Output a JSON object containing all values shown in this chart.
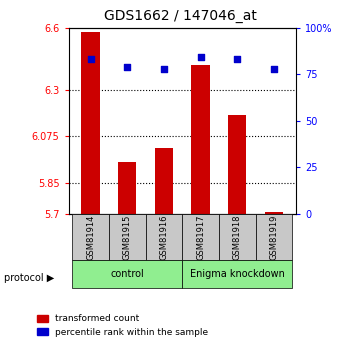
{
  "title": "GDS1662 / 147046_at",
  "samples": [
    "GSM81914",
    "GSM81915",
    "GSM81916",
    "GSM81917",
    "GSM81918",
    "GSM81919"
  ],
  "red_values": [
    6.58,
    5.95,
    6.02,
    6.42,
    6.18,
    5.71
  ],
  "blue_values": [
    83,
    79,
    78,
    84,
    83,
    78
  ],
  "ylim_left": [
    5.7,
    6.6
  ],
  "ylim_right": [
    0,
    100
  ],
  "yticks_left": [
    5.7,
    5.85,
    6.075,
    6.3,
    6.6
  ],
  "yticks_right": [
    0,
    25,
    50,
    75,
    100
  ],
  "ytick_labels_left": [
    "5.7",
    "5.85",
    "6.075",
    "6.3",
    "6.6"
  ],
  "ytick_labels_right": [
    "0",
    "25",
    "50",
    "75",
    "100%"
  ],
  "red_color": "#CC0000",
  "blue_color": "#0000CC",
  "bar_bg": "#C8C8C8",
  "group_color": "#90EE90",
  "legend_red": "transformed count",
  "legend_blue": "percentile rank within the sample"
}
